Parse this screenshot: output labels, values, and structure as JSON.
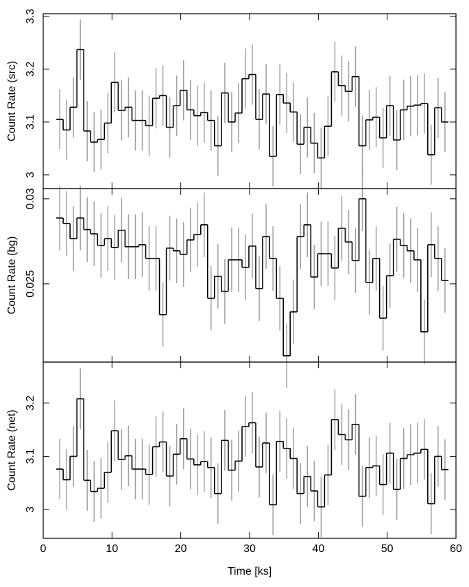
{
  "chart_data": [
    {
      "type": "step",
      "ylabel": "Count Rate (src)",
      "xlim": [
        0,
        60
      ],
      "xticks": [
        0,
        10,
        20,
        30,
        40,
        50,
        60
      ],
      "ylim": [
        2.974,
        3.305
      ],
      "yticks": [
        3,
        3.1,
        3.2,
        3.3
      ],
      "color": "#000000",
      "error_color": "#a0a0a0",
      "x": [
        2.4,
        3.4,
        4.4,
        5.4,
        6.4,
        7.4,
        8.4,
        9.4,
        10.4,
        11.4,
        12.4,
        13.4,
        14.4,
        15.4,
        16.4,
        17.4,
        18.4,
        19.4,
        20.4,
        21.4,
        22.4,
        23.4,
        24.4,
        25.4,
        26.4,
        27.4,
        28.4,
        29.4,
        30.4,
        31.4,
        32.4,
        33.4,
        34.4,
        35.4,
        36.4,
        37.4,
        38.4,
        39.4,
        40.4,
        41.4,
        42.4,
        43.4,
        44.4,
        45.4,
        46.4,
        47.4,
        48.4,
        49.4,
        50.4,
        51.4,
        52.4,
        53.4,
        54.4,
        55.4,
        56.4,
        57.4,
        58.4
      ],
      "values": [
        3.105,
        3.085,
        3.128,
        3.237,
        3.083,
        3.062,
        3.067,
        3.098,
        3.175,
        3.122,
        3.128,
        3.103,
        3.103,
        3.093,
        3.145,
        3.15,
        3.09,
        3.131,
        3.16,
        3.123,
        3.112,
        3.118,
        3.103,
        3.055,
        3.155,
        3.1,
        3.117,
        3.182,
        3.19,
        3.105,
        3.153,
        3.035,
        3.152,
        3.136,
        3.119,
        3.058,
        3.09,
        3.06,
        3.032,
        3.092,
        3.195,
        3.169,
        3.158,
        3.186,
        3.055,
        3.104,
        3.109,
        3.07,
        3.131,
        3.066,
        3.123,
        3.13,
        3.132,
        3.135,
        3.038,
        3.127,
        3.1
      ],
      "errors": [
        0.057,
        0.057,
        0.057,
        0.057,
        0.057,
        0.057,
        0.057,
        0.057,
        0.057,
        0.057,
        0.057,
        0.057,
        0.057,
        0.057,
        0.057,
        0.057,
        0.057,
        0.057,
        0.057,
        0.057,
        0.057,
        0.057,
        0.057,
        0.057,
        0.057,
        0.057,
        0.057,
        0.057,
        0.057,
        0.057,
        0.057,
        0.057,
        0.057,
        0.057,
        0.057,
        0.057,
        0.057,
        0.057,
        0.057,
        0.057,
        0.057,
        0.057,
        0.057,
        0.057,
        0.057,
        0.057,
        0.057,
        0.057,
        0.057,
        0.057,
        0.057,
        0.057,
        0.057,
        0.057,
        0.057,
        0.057,
        0.057
      ]
    },
    {
      "type": "step",
      "ylabel": "Count Rate (bg)",
      "xlim": [
        0,
        60
      ],
      "xticks": [
        0,
        10,
        20,
        30,
        40,
        50,
        60
      ],
      "ylim": [
        0.0204,
        0.0306
      ],
      "yticks": [
        0.025,
        0.03
      ],
      "color": "#000000",
      "error_color": "#a0a0a0",
      "x": [
        2.4,
        3.4,
        4.4,
        5.4,
        6.4,
        7.4,
        8.4,
        9.4,
        10.4,
        11.4,
        12.4,
        13.4,
        14.4,
        15.4,
        16.4,
        17.4,
        18.4,
        19.4,
        20.4,
        21.4,
        22.4,
        23.4,
        24.4,
        25.4,
        26.4,
        27.4,
        28.4,
        29.4,
        30.4,
        31.4,
        32.4,
        33.4,
        34.4,
        35.4,
        36.4,
        37.4,
        38.4,
        39.4,
        40.4,
        41.4,
        42.4,
        43.4,
        44.4,
        45.4,
        46.4,
        47.4,
        48.4,
        49.4,
        50.4,
        51.4,
        52.4,
        53.4,
        54.4,
        55.4,
        56.4,
        57.4,
        58.4
      ],
      "values": [
        0.02887,
        0.02855,
        0.02766,
        0.02887,
        0.02819,
        0.02794,
        0.02726,
        0.02766,
        0.02714,
        0.02815,
        0.02718,
        0.02718,
        0.0273,
        0.02649,
        0.02649,
        0.02319,
        0.0271,
        0.02694,
        0.02673,
        0.02758,
        0.0279,
        0.02847,
        0.02415,
        0.02544,
        0.02456,
        0.02641,
        0.02641,
        0.02597,
        0.02722,
        0.02472,
        0.02778,
        0.02649,
        0.02415,
        0.02077,
        0.02335,
        0.02778,
        0.02847,
        0.0254,
        0.02677,
        0.02677,
        0.02593,
        0.02827,
        0.02746,
        0.02637,
        0.03,
        0.02508,
        0.02649,
        0.02298,
        0.02548,
        0.02762,
        0.02726,
        0.02694,
        0.02641,
        0.02218,
        0.0273,
        0.02649,
        0.0252
      ],
      "errors": [
        0.0019,
        0.0019,
        0.0019,
        0.0019,
        0.0019,
        0.0019,
        0.0019,
        0.0019,
        0.0019,
        0.0019,
        0.0019,
        0.0019,
        0.0019,
        0.0019,
        0.0019,
        0.0019,
        0.0019,
        0.0019,
        0.0019,
        0.0019,
        0.0019,
        0.0019,
        0.0019,
        0.0019,
        0.0019,
        0.0019,
        0.0019,
        0.0019,
        0.0019,
        0.0019,
        0.0019,
        0.0019,
        0.0019,
        0.0019,
        0.0019,
        0.0019,
        0.0019,
        0.0019,
        0.0019,
        0.0019,
        0.0019,
        0.0019,
        0.0019,
        0.0019,
        0.0019,
        0.0019,
        0.0019,
        0.0019,
        0.0019,
        0.0019,
        0.0019,
        0.0019,
        0.0019,
        0.0019,
        0.0019,
        0.0019,
        0.0019
      ]
    },
    {
      "type": "step",
      "ylabel": "Count Rate (net)",
      "xlabel": "Time [ks]",
      "xlim": [
        0,
        60
      ],
      "xticks": [
        0,
        10,
        20,
        30,
        40,
        50,
        60
      ],
      "ylim": [
        2.946,
        3.277
      ],
      "yticks": [
        3,
        3.1,
        3.2
      ],
      "color": "#000000",
      "error_color": "#a0a0a0",
      "x": [
        2.4,
        3.4,
        4.4,
        5.4,
        6.4,
        7.4,
        8.4,
        9.4,
        10.4,
        11.4,
        12.4,
        13.4,
        14.4,
        15.4,
        16.4,
        17.4,
        18.4,
        19.4,
        20.4,
        21.4,
        22.4,
        23.4,
        24.4,
        25.4,
        26.4,
        27.4,
        28.4,
        29.4,
        30.4,
        31.4,
        32.4,
        33.4,
        34.4,
        35.4,
        36.4,
        37.4,
        38.4,
        39.4,
        40.4,
        41.4,
        42.4,
        43.4,
        44.4,
        45.4,
        46.4,
        47.4,
        48.4,
        49.4,
        50.4,
        51.4,
        52.4,
        53.4,
        54.4,
        55.4,
        56.4,
        57.4,
        58.4
      ],
      "values": [
        3.076,
        3.056,
        3.1,
        3.208,
        3.055,
        3.034,
        3.04,
        3.07,
        3.148,
        3.094,
        3.101,
        3.076,
        3.076,
        3.066,
        3.118,
        3.127,
        3.063,
        3.104,
        3.133,
        3.095,
        3.084,
        3.09,
        3.079,
        3.03,
        3.13,
        3.074,
        3.091,
        3.156,
        3.163,
        3.08,
        3.125,
        3.009,
        3.128,
        3.115,
        3.096,
        3.03,
        3.062,
        3.035,
        3.005,
        3.065,
        3.169,
        3.141,
        3.131,
        3.16,
        3.025,
        3.079,
        3.082,
        3.047,
        3.106,
        3.038,
        3.096,
        3.103,
        3.106,
        3.113,
        3.011,
        3.1,
        3.075
      ],
      "errors": [
        0.057,
        0.057,
        0.057,
        0.057,
        0.057,
        0.057,
        0.057,
        0.057,
        0.057,
        0.057,
        0.057,
        0.057,
        0.057,
        0.057,
        0.057,
        0.057,
        0.057,
        0.057,
        0.057,
        0.057,
        0.057,
        0.057,
        0.057,
        0.057,
        0.057,
        0.057,
        0.057,
        0.057,
        0.057,
        0.057,
        0.057,
        0.057,
        0.057,
        0.057,
        0.057,
        0.057,
        0.057,
        0.057,
        0.057,
        0.057,
        0.057,
        0.057,
        0.057,
        0.057,
        0.057,
        0.057,
        0.057,
        0.057,
        0.057,
        0.057,
        0.057,
        0.057,
        0.057,
        0.057,
        0.057,
        0.057,
        0.057
      ]
    }
  ]
}
